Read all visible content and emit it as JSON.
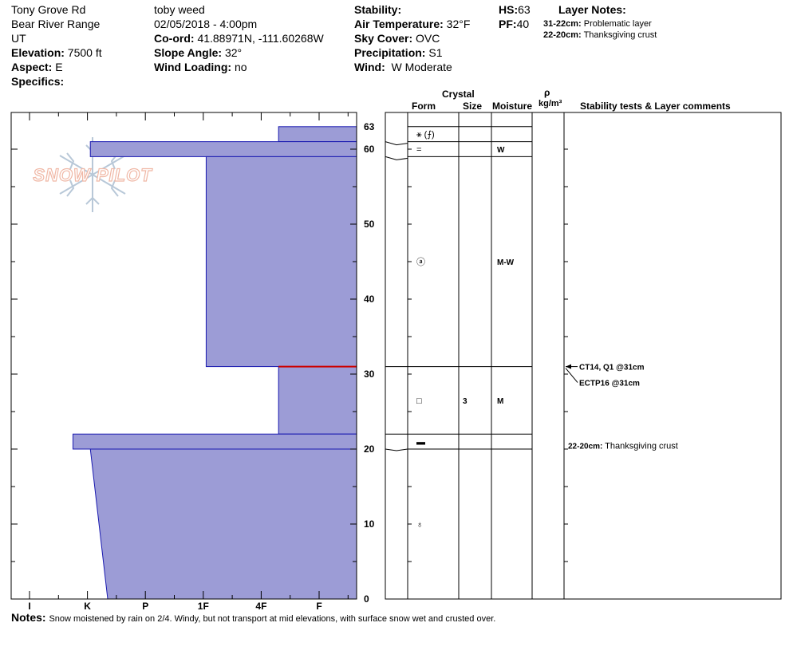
{
  "header": {
    "location": "Tony Grove Rd",
    "range": "Bear River Range",
    "state": "UT",
    "elevation_label": "Elevation:",
    "elevation": "7500 ft",
    "aspect_label": "Aspect:",
    "aspect": "E",
    "specifics_label": "Specifics:",
    "observer": "toby weed",
    "datetime": "02/05/2018 - 4:00pm",
    "coord_label": "Co-ord:",
    "coord": "41.88971N, -111.60268W",
    "slope_label": "Slope Angle:",
    "slope": "32°",
    "wind_loading_label": "Wind Loading:",
    "wind_loading": "no",
    "stability_label": "Stability:",
    "stability": "",
    "air_temp_label": "Air Temperature:",
    "air_temp": "32°F",
    "sky_label": "Sky Cover:",
    "sky": "OVC",
    "precip_label": "Precipitation:",
    "precip": "S1",
    "wind_label": "Wind:",
    "wind": "W Moderate",
    "hs_label": "HS:",
    "hs": "63",
    "pf_label": "PF:",
    "pf": "40",
    "layer_notes_label": "Layer Notes:",
    "layer_notes": [
      {
        "range": "31-22cm:",
        "text": "Problematic layer"
      },
      {
        "range": "22-20cm:",
        "text": "Thanksgiving crust"
      }
    ]
  },
  "logo_text": "SNOW PILOT",
  "table_headers": {
    "crystal": "Crystal",
    "form": "Form",
    "size": "Size",
    "moisture": "Moisture",
    "density_symbol": "ρ",
    "density_unit": "kg/m³",
    "comments": "Stability tests & Layer comments"
  },
  "chart_data": {
    "type": "snow-profile",
    "hs": 63,
    "y_axis": {
      "unit": "cm",
      "range": [
        0,
        63
      ],
      "ticks": [
        0,
        10,
        20,
        30,
        40,
        50,
        60,
        63
      ]
    },
    "hardness_axis": {
      "ticks": [
        "I",
        "K",
        "P",
        "1F",
        "4F",
        "F"
      ]
    },
    "hardness_layers": [
      {
        "top": 63,
        "bottom": 61,
        "hardness_index": 4.3
      },
      {
        "top": 61,
        "bottom": 59,
        "hardness_index": 1.05
      },
      {
        "top": 59,
        "bottom": 31,
        "hardness_index": 3.05
      },
      {
        "top": 31,
        "bottom": 22,
        "hardness_index": 4.3
      },
      {
        "top": 22,
        "bottom": 20,
        "hardness_index": 0.75
      },
      {
        "top": 20,
        "bottom": 0,
        "hardness_index_top": 1.05,
        "hardness_index_bottom": 1.35
      }
    ],
    "problem_layer_height": 31,
    "layer_boundaries": [
      63,
      61,
      59,
      31,
      22,
      20
    ],
    "layers": [
      {
        "top": 63,
        "bottom": 61,
        "form_glyph": "⚹ (⨍)",
        "size": "",
        "moisture": ""
      },
      {
        "top": 61,
        "bottom": 59,
        "form_glyph": "=",
        "size": "",
        "moisture": "W"
      },
      {
        "top": 59,
        "bottom": 31,
        "form_glyph": "ⓐ",
        "size": "",
        "moisture": "M-W"
      },
      {
        "top": 31,
        "bottom": 22,
        "form_glyph": "□",
        "size": "3",
        "moisture": "M"
      },
      {
        "top": 22,
        "bottom": 20,
        "form_glyph": "▬",
        "size": "",
        "moisture": ""
      },
      {
        "top": 20,
        "bottom": 0,
        "form_glyph": "♁",
        "size": "",
        "moisture": ""
      }
    ],
    "stability_tests": [
      {
        "text": "CT14, Q1 @31cm",
        "height": 31
      },
      {
        "text": "ECTP16 @31cm",
        "height": 31
      }
    ],
    "layer_comments": [
      {
        "height": 20.5,
        "range": "22-20cm:",
        "text": "Thanksgiving crust"
      }
    ]
  },
  "notes_label": "Notes:",
  "notes": "Snow moistened by rain on 2/4.  Windy, but not transport at mid elevations, with surface snow wet and crusted over.",
  "colors": {
    "layer_fill": "#9c9cd6",
    "layer_stroke": "#1a1ab0",
    "problem_line": "#cc0000",
    "logo": "#f0b8a6",
    "logo_flake": "#b8c8d8"
  }
}
